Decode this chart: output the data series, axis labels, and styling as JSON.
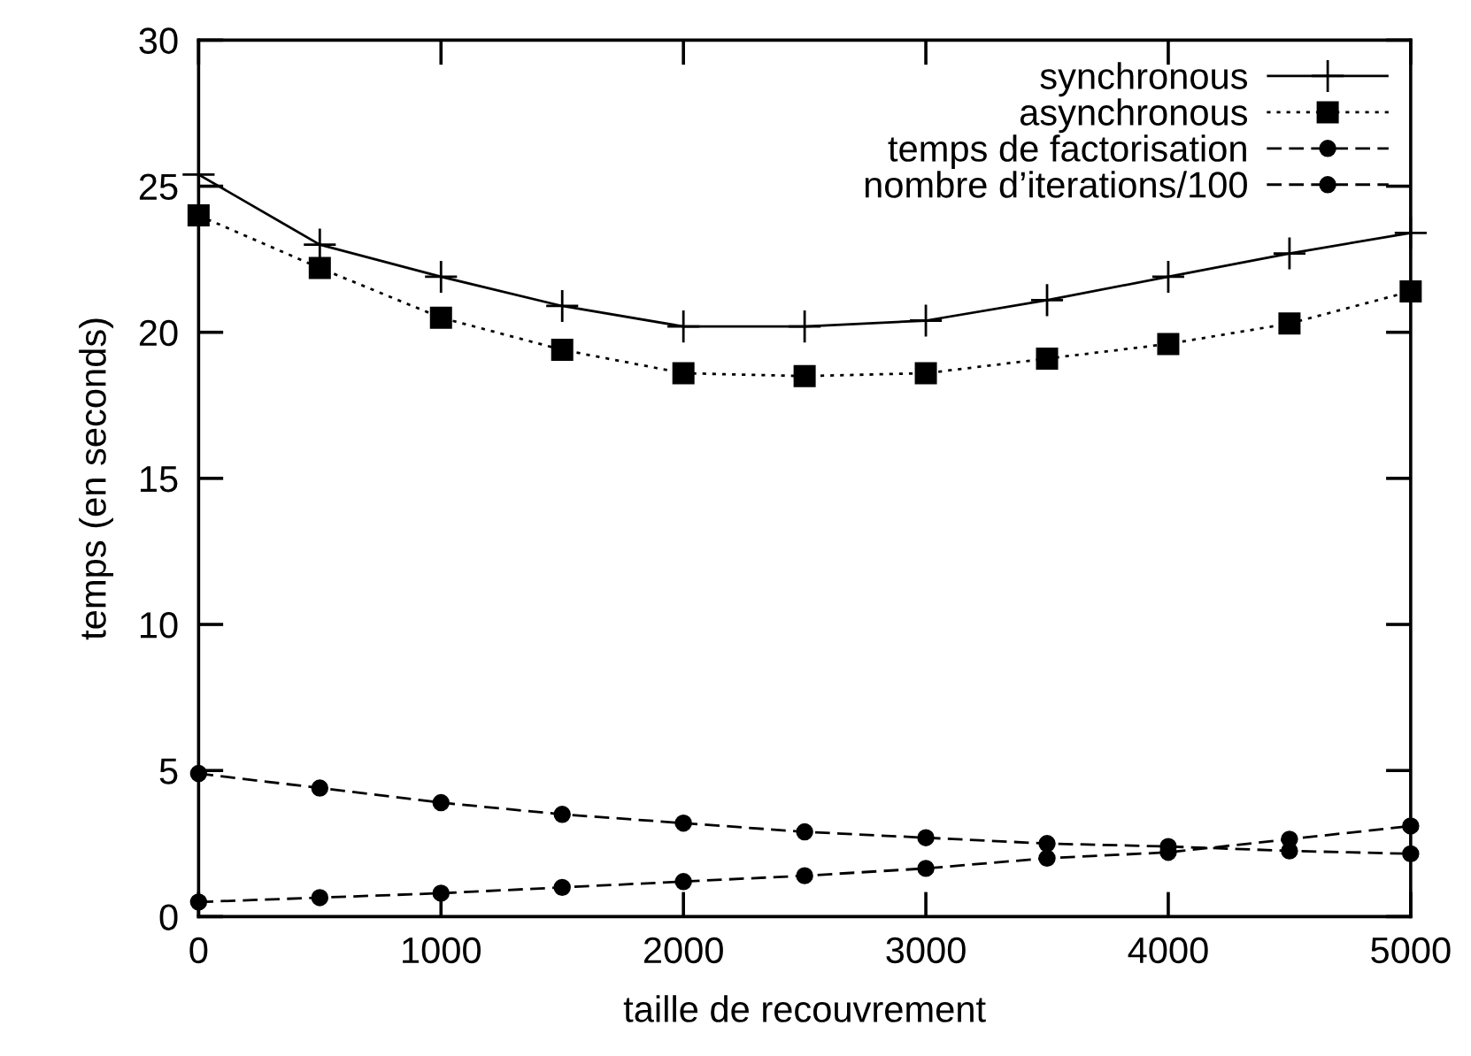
{
  "chart_data": {
    "type": "line",
    "xlabel": "taille de recouvrement",
    "ylabel": "temps (en seconds)",
    "x": [
      0,
      500,
      1000,
      1500,
      2000,
      2500,
      3000,
      3500,
      4000,
      4500,
      5000
    ],
    "series": [
      {
        "name": "synchronous",
        "color": "#000000",
        "marker": "cross",
        "line_style": "solid",
        "values": [
          25.4,
          23.0,
          21.9,
          20.9,
          20.2,
          20.2,
          20.4,
          21.1,
          21.9,
          22.7,
          23.4
        ]
      },
      {
        "name": "asynchronous",
        "color": "#000000",
        "marker": "square",
        "line_style": "dotted",
        "values": [
          24.0,
          22.2,
          20.5,
          19.4,
          18.6,
          18.5,
          18.6,
          19.1,
          19.6,
          20.3,
          21.4
        ]
      },
      {
        "name": "temps de factorisation",
        "color": "#000000",
        "marker": "circle",
        "line_style": "dashed",
        "values": [
          0.5,
          0.65,
          0.8,
          1.0,
          1.2,
          1.4,
          1.65,
          2.0,
          2.2,
          2.65,
          3.1
        ]
      },
      {
        "name": "nombre d’iterations/100",
        "color": "#000000",
        "marker": "circle",
        "line_style": "dashed",
        "values": [
          4.9,
          4.4,
          3.9,
          3.5,
          3.2,
          2.9,
          2.7,
          2.5,
          2.4,
          2.25,
          2.15
        ]
      }
    ],
    "xlim": [
      0,
      5000
    ],
    "xticks": [
      0,
      1000,
      2000,
      3000,
      4000,
      5000
    ],
    "ylim": [
      0,
      30
    ],
    "yticks": [
      0,
      5,
      10,
      15,
      20,
      25,
      30
    ],
    "grid": false,
    "legend": "top right"
  }
}
